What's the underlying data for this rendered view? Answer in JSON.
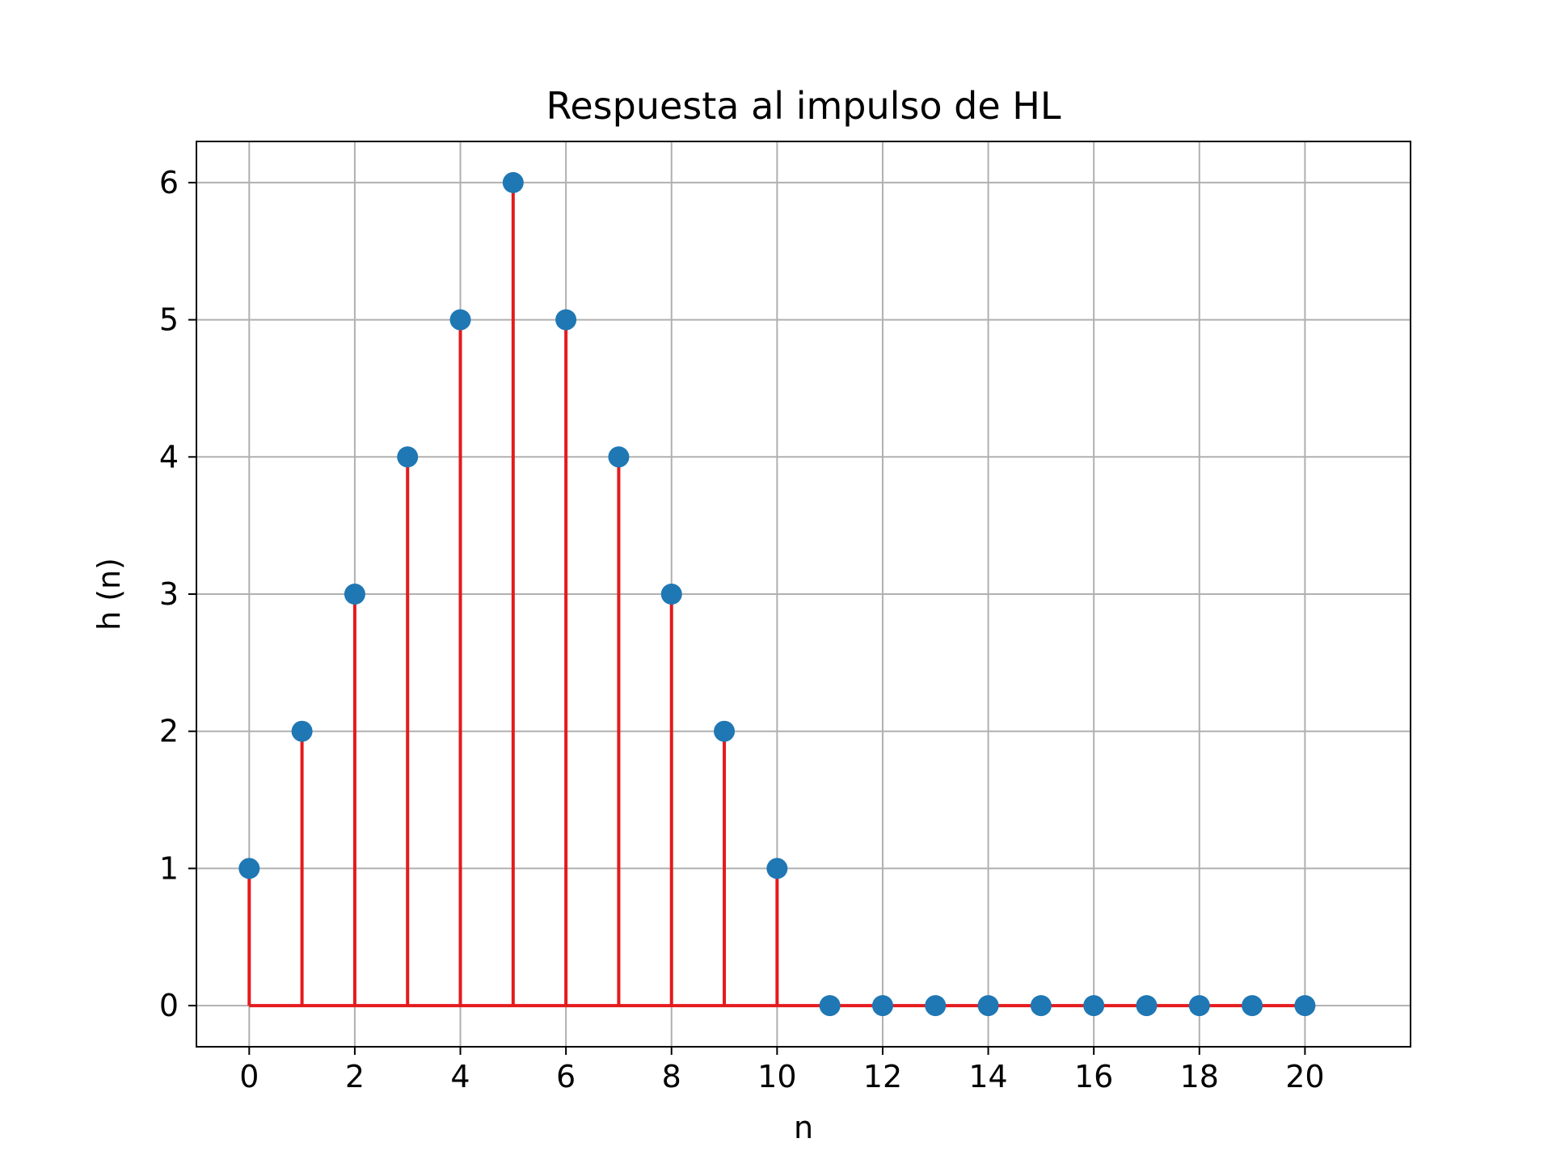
{
  "chart_data": {
    "type": "stem",
    "title": "Respuesta al impulso de HL",
    "xlabel": "n",
    "ylabel": "h (n)",
    "x": [
      0,
      1,
      2,
      3,
      4,
      5,
      6,
      7,
      8,
      9,
      10,
      11,
      12,
      13,
      14,
      15,
      16,
      17,
      18,
      19,
      20
    ],
    "values": [
      1,
      2,
      3,
      4,
      5,
      6,
      5,
      4,
      3,
      2,
      1,
      0,
      0,
      0,
      0,
      0,
      0,
      0,
      0,
      0,
      0
    ],
    "xlim": [
      -1,
      22
    ],
    "ylim": [
      -0.3,
      6.3
    ],
    "xticks": [
      0,
      2,
      4,
      6,
      8,
      10,
      12,
      14,
      16,
      18,
      20
    ],
    "yticks": [
      0,
      1,
      2,
      3,
      4,
      5,
      6
    ],
    "xtick_labels": [
      "0",
      "2",
      "4",
      "6",
      "8",
      "10",
      "12",
      "14",
      "16",
      "18",
      "20"
    ],
    "ytick_labels": [
      "0",
      "1",
      "2",
      "3",
      "4",
      "5",
      "6"
    ],
    "grid": true,
    "colors": {
      "marker": "#1f77b4",
      "stem": "#e41a1c",
      "baseline": "#e41a1c",
      "grid": "#b0b0b0",
      "axes": "#000000"
    }
  }
}
